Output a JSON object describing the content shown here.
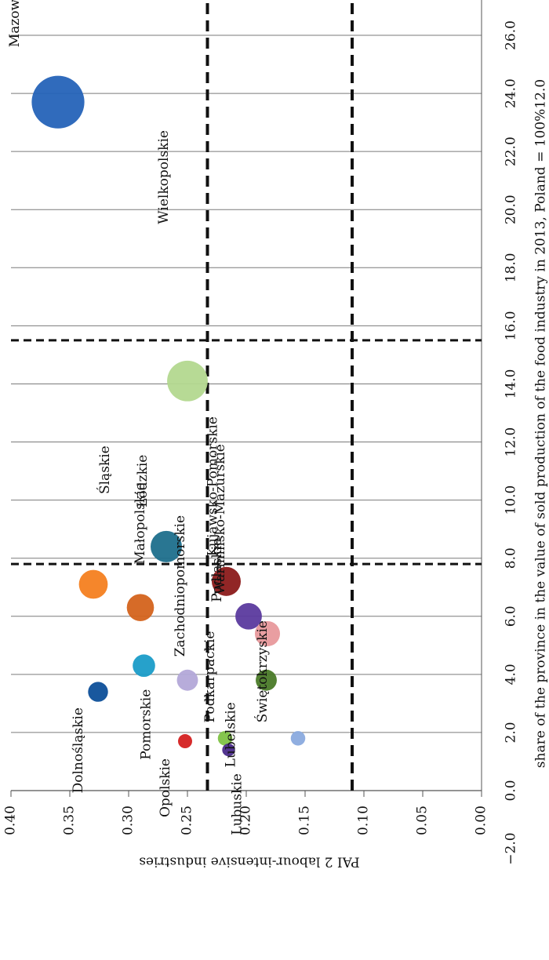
{
  "chart_data": {
    "type": "scatter",
    "subtype": "bubble",
    "orientation": "rotated-90-clockwise",
    "title": "",
    "xlabel": "share of the province in the value of sold production of the food industry in 2013, Poland = 100%12.0",
    "ylabel": "PAI 2 labour-intensive industries",
    "x_ticks": [
      "−2.0",
      "0.0",
      "2.0",
      "4.0",
      "6.0",
      "8.0",
      "10.0",
      "12.0",
      "14.0",
      "16.0",
      "18.0",
      "20.0",
      "22.0",
      "24.0",
      "26.0"
    ],
    "y_ticks": [
      "0.00",
      "0.05",
      "0.10",
      "0.15",
      "0.20",
      "0.25",
      "0.30",
      "0.35",
      "0.40"
    ],
    "xlim": [
      -2.0,
      27.0
    ],
    "ylim": [
      0.0,
      0.4
    ],
    "grid": "x-major",
    "reference_lines": {
      "x": [
        7.8,
        15.5
      ],
      "y": [
        0.233,
        0.11
      ]
    },
    "points": [
      {
        "label": "Mazowieckie",
        "x": 23.7,
        "y": 0.36,
        "size": 23.7,
        "color": "#2563b8"
      },
      {
        "label": "Wielkopolskie",
        "x": 14.1,
        "y": 0.25,
        "size": 14.1,
        "color": "#b3d88f"
      },
      {
        "label": "Łódzkie",
        "x": 8.4,
        "y": 0.268,
        "size": 8.4,
        "color": "#1e6f8c"
      },
      {
        "label": "Śląskie",
        "x": 7.1,
        "y": 0.33,
        "size": 7.1,
        "color": "#f47f20"
      },
      {
        "label": "Kujawsko-Pomorskie",
        "x": 7.2,
        "y": 0.217,
        "size": 7.2,
        "color": "#8b1a1a"
      },
      {
        "label": "Małopolskie",
        "x": 6.3,
        "y": 0.29,
        "size": 6.3,
        "color": "#d4631c"
      },
      {
        "label": "Podlaskie",
        "x": 6.0,
        "y": 0.198,
        "size": 6.0,
        "color": "#5b3a9e"
      },
      {
        "label": "Warmińsko-Mazurskie",
        "x": 5.4,
        "y": 0.182,
        "size": 5.4,
        "color": "#e8999c"
      },
      {
        "label": "Pomorskie",
        "x": 4.3,
        "y": 0.287,
        "size": 4.3,
        "color": "#1a9cc8"
      },
      {
        "label": "Zachodniopomorskie",
        "x": 3.8,
        "y": 0.25,
        "size": 3.8,
        "color": "#b3a8d8"
      },
      {
        "label": "Lubelskie",
        "x": 3.8,
        "y": 0.183,
        "size": 3.8,
        "color": "#4a7a28"
      },
      {
        "label": "Dolnośląskie",
        "x": 3.4,
        "y": 0.326,
        "size": 3.4,
        "color": "#0d4f99"
      },
      {
        "label": "Świętokrzyskie",
        "x": 1.8,
        "y": 0.156,
        "size": 1.8,
        "color": "#8aaade"
      },
      {
        "label": "Opolskie",
        "x": 1.7,
        "y": 0.252,
        "size": 1.7,
        "color": "#d42020"
      },
      {
        "label": "Podkarpackie",
        "x": 1.8,
        "y": 0.218,
        "size": 1.8,
        "color": "#7ec244"
      },
      {
        "label": "Lubuskie",
        "x": 1.4,
        "y": 0.215,
        "size": 1.4,
        "color": "#4a2a8a"
      }
    ]
  }
}
